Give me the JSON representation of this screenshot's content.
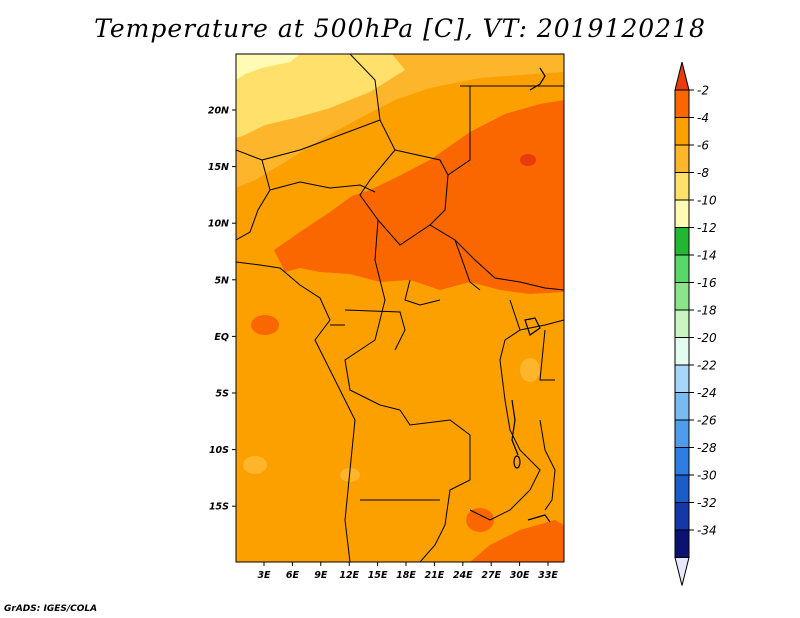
{
  "title": "Temperature at 500hPa [C], VT: 2019120218",
  "credit": "GrADS: IGES/COLA",
  "map": {
    "lat_labels": [
      "20N",
      "15N",
      "10N",
      "5N",
      "EQ",
      "5S",
      "10S",
      "15S"
    ],
    "lon_labels": [
      "3E",
      "6E",
      "9E",
      "12E",
      "15E",
      "18E",
      "21E",
      "24E",
      "27E",
      "30E",
      "33E"
    ]
  },
  "colorbar": {
    "labels": [
      "-2",
      "-4",
      "-6",
      "-8",
      "-10",
      "-12",
      "-14",
      "-16",
      "-18",
      "-20",
      "-22",
      "-24",
      "-26",
      "-28",
      "-30",
      "-32",
      "-34"
    ],
    "colors": [
      "#e83c0c",
      "#fa6600",
      "#fca000",
      "#fdb52c",
      "#fee06a",
      "#fffbb4",
      "#20b830",
      "#58d868",
      "#8ae48a",
      "#c8f5c0",
      "#e4fcf0",
      "#a6d6f8",
      "#78baf2",
      "#4e9cec",
      "#2d7ee0",
      "#1a5cc8",
      "#1438a8",
      "#0a1272",
      "#e8e8fa"
    ]
  }
}
